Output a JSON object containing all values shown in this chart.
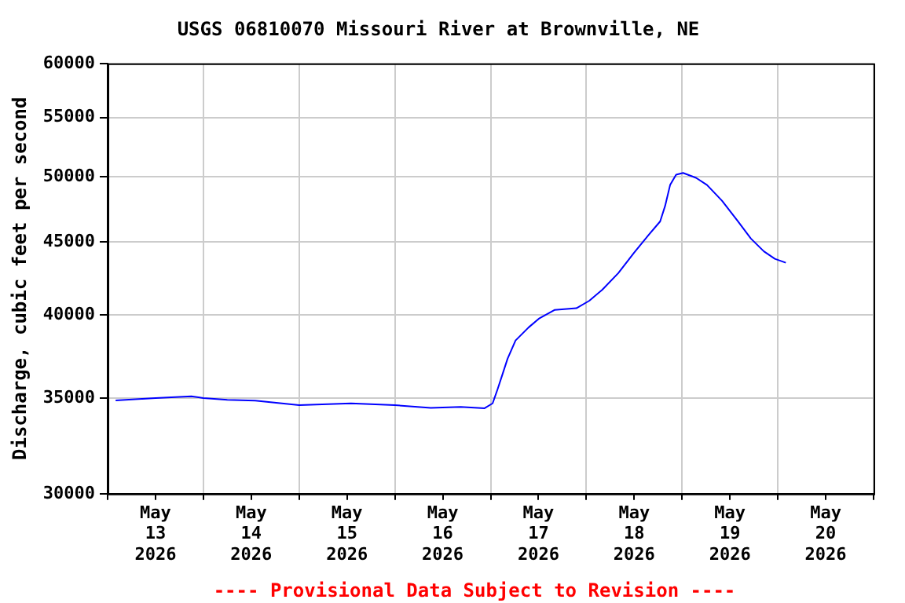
{
  "chart_data": {
    "type": "line",
    "title": "USGS 06810070 Missouri River at Brownville, NE",
    "ylabel": "Discharge, cubic feet per second",
    "annotations": [
      "---- Provisional Data Subject to Revision ----"
    ],
    "x": [
      "2026-05-12T14:00",
      "2026-05-13T00:00",
      "2026-05-13T09:00",
      "2026-05-13T12:00",
      "2026-05-13T18:00",
      "2026-05-14T01:00",
      "2026-05-14T12:00",
      "2026-05-15T01:00",
      "2026-05-15T12:00",
      "2026-05-15T21:00",
      "2026-05-16T04:30",
      "2026-05-16T10:30",
      "2026-05-16T12:30",
      "2026-05-16T13:45",
      "2026-05-16T15:00",
      "2026-05-16T16:15",
      "2026-05-16T18:15",
      "2026-05-16T21:30",
      "2026-05-17T00:15",
      "2026-05-17T04:00",
      "2026-05-17T09:30",
      "2026-05-17T12:45",
      "2026-05-17T16:00",
      "2026-05-17T20:00",
      "2026-05-18T00:00",
      "2026-05-18T03:45",
      "2026-05-18T06:30",
      "2026-05-18T07:45",
      "2026-05-18T09:00",
      "2026-05-18T10:30",
      "2026-05-18T12:15",
      "2026-05-18T15:30",
      "2026-05-18T18:15",
      "2026-05-18T22:00",
      "2026-05-19T02:00",
      "2026-05-19T05:15",
      "2026-05-19T08:30",
      "2026-05-19T11:15",
      "2026-05-19T14:00"
    ],
    "series": [
      {
        "color": "#0000ff",
        "values": [
          34860,
          35000,
          35100,
          35000,
          34900,
          34850,
          34600,
          34700,
          34600,
          34450,
          34500,
          34430,
          34700,
          35500,
          36380,
          37290,
          38400,
          39210,
          39800,
          40330,
          40450,
          40940,
          41670,
          42800,
          44250,
          45570,
          46520,
          47700,
          49330,
          50150,
          50300,
          49900,
          49330,
          48100,
          46520,
          45250,
          44330,
          43800,
          43520
        ]
      }
    ],
    "xlim": [
      "2026-05-12T12:00",
      "2026-05-20T12:00"
    ],
    "xticks": [
      {
        "value": "2026-05-12T12:00",
        "label": null
      },
      {
        "value": "2026-05-13",
        "label": "May\n13\n2026"
      },
      {
        "value": "2026-05-13T12:00",
        "label": null
      },
      {
        "value": "2026-05-14",
        "label": "May\n14\n2026"
      },
      {
        "value": "2026-05-14T12:00",
        "label": null
      },
      {
        "value": "2026-05-15",
        "label": "May\n15\n2026"
      },
      {
        "value": "2026-05-15T12:00",
        "label": null
      },
      {
        "value": "2026-05-16",
        "label": "May\n16\n2026"
      },
      {
        "value": "2026-05-16T12:00",
        "label": null
      },
      {
        "value": "2026-05-17",
        "label": "May\n17\n2026"
      },
      {
        "value": "2026-05-17T12:00",
        "label": null
      },
      {
        "value": "2026-05-18",
        "label": "May\n18\n2026"
      },
      {
        "value": "2026-05-18T12:00",
        "label": null
      },
      {
        "value": "2026-05-19",
        "label": "May\n19\n2026"
      },
      {
        "value": "2026-05-19T12:00",
        "label": null
      },
      {
        "value": "2026-05-20",
        "label": "May\n20\n2026"
      },
      {
        "value": "2026-05-20T12:00",
        "label": null
      }
    ],
    "ylim": [
      30000,
      60000
    ],
    "yticks": [
      30000,
      35000,
      40000,
      45000,
      50000,
      55000,
      60000
    ],
    "log": "y",
    "grid": true,
    "legend": false,
    "marker": "none",
    "line_style": "solid"
  }
}
